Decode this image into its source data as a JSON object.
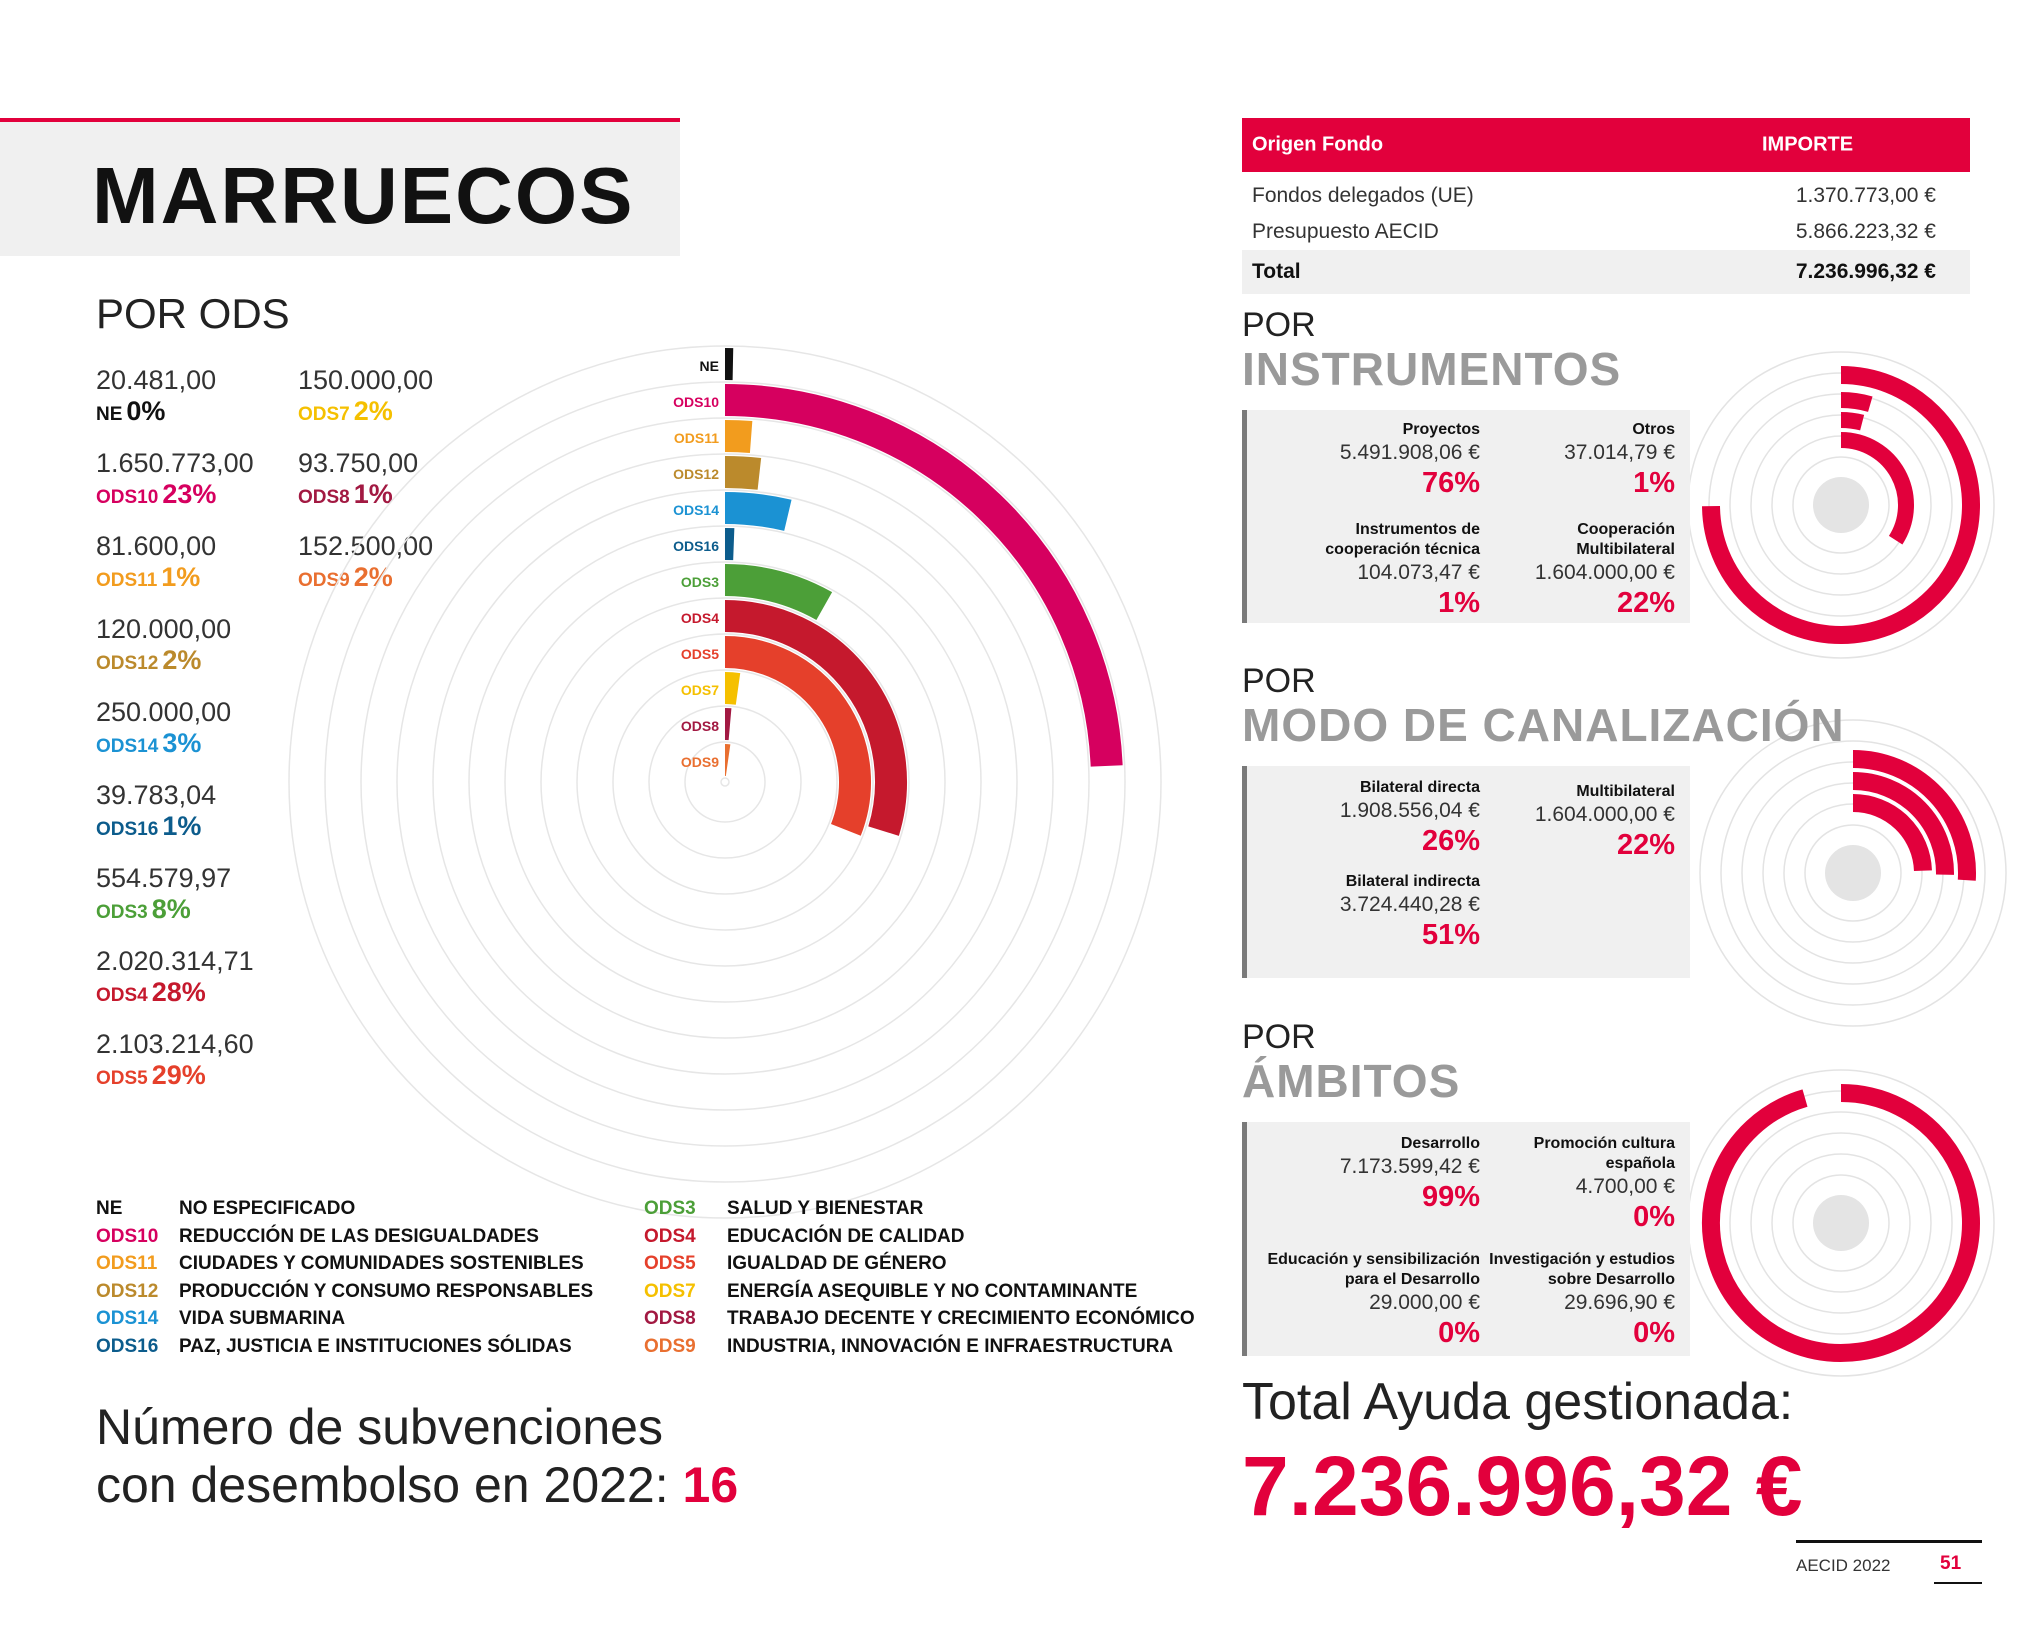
{
  "title": "MARRUECOS",
  "ods_section": {
    "heading": "POR ODS",
    "items": [
      {
        "code": "NE",
        "amount": "20.481,00",
        "pct": "0%",
        "color": "#111111"
      },
      {
        "code": "ODS10",
        "amount": "1.650.773,00",
        "pct": "23%",
        "color": "#d6005f"
      },
      {
        "code": "ODS11",
        "amount": "81.600,00",
        "pct": "1%",
        "color": "#f29c1e"
      },
      {
        "code": "ODS12",
        "amount": "120.000,00",
        "pct": "2%",
        "color": "#bb8a2c"
      },
      {
        "code": "ODS14",
        "amount": "250.000,00",
        "pct": "3%",
        "color": "#1b92d3"
      },
      {
        "code": "ODS16",
        "amount": "39.783,04",
        "pct": "1%",
        "color": "#0c5c8c"
      },
      {
        "code": "ODS3",
        "amount": "554.579,97",
        "pct": "8%",
        "color": "#4c9f38"
      },
      {
        "code": "ODS4",
        "amount": "2.020.314,71",
        "pct": "28%",
        "color": "#c5192d"
      },
      {
        "code": "ODS5",
        "amount": "2.103.214,60",
        "pct": "29%",
        "color": "#e5402b"
      },
      {
        "code": "ODS7",
        "amount": "150.000,00",
        "pct": "2%",
        "color": "#f5c000"
      },
      {
        "code": "ODS8",
        "amount": "93.750,00",
        "pct": "1%",
        "color": "#a21942"
      },
      {
        "code": "ODS9",
        "amount": "152.500,00",
        "pct": "2%",
        "color": "#e96f30"
      }
    ]
  },
  "chart_data": [
    {
      "type": "radial-bar",
      "categories": [
        "NE",
        "ODS10",
        "ODS11",
        "ODS12",
        "ODS14",
        "ODS16",
        "ODS3",
        "ODS4",
        "ODS5",
        "ODS7",
        "ODS8",
        "ODS9"
      ],
      "values": [
        20481.0,
        1650773.0,
        81600.0,
        120000.0,
        250000.0,
        39783.04,
        554579.97,
        2020314.71,
        2103214.6,
        150000.0,
        93750.0,
        152500.0
      ],
      "percentages": [
        0,
        23,
        1,
        2,
        3,
        1,
        8,
        28,
        29,
        2,
        1,
        2
      ],
      "colors": [
        "#111111",
        "#d6005f",
        "#f29c1e",
        "#bb8a2c",
        "#1b92d3",
        "#0c5c8c",
        "#4c9f38",
        "#c5192d",
        "#e5402b",
        "#f5c000",
        "#a21942",
        "#e96f30"
      ]
    },
    {
      "type": "radial-bar",
      "categories": [
        "Proyectos",
        "Otros",
        "Instrumentos de cooperación técnica",
        "Cooperación Multibilateral"
      ],
      "percentages": [
        76,
        1,
        1,
        22
      ]
    },
    {
      "type": "radial-bar",
      "categories": [
        "Bilateral directa",
        "Multibilateral",
        "Bilateral indirecta"
      ],
      "percentages": [
        26,
        22,
        51
      ]
    },
    {
      "type": "radial-bar",
      "categories": [
        "Desarrollo",
        "Promoción cultura española",
        "Educación y sensibilización para el Desarrollo",
        "Investigación y estudios sobre Desarrollo"
      ],
      "percentages": [
        99,
        0,
        0,
        0
      ]
    }
  ],
  "legend": [
    {
      "code": "NE",
      "name": "NO ESPECIFICADO",
      "color": "#111111"
    },
    {
      "code": "ODS10",
      "name": "REDUCCIÓN DE LAS DESIGUALDADES",
      "color": "#d6005f"
    },
    {
      "code": "ODS11",
      "name": "CIUDADES Y COMUNIDADES SOSTENIBLES",
      "color": "#f29c1e"
    },
    {
      "code": "ODS12",
      "name": "PRODUCCIÓN Y CONSUMO RESPONSABLES",
      "color": "#bb8a2c"
    },
    {
      "code": "ODS14",
      "name": "VIDA SUBMARINA",
      "color": "#1b92d3"
    },
    {
      "code": "ODS16",
      "name": "PAZ, JUSTICIA E INSTITUCIONES SÓLIDAS",
      "color": "#0c5c8c"
    },
    {
      "code": "ODS3",
      "name": "SALUD Y BIENESTAR",
      "color": "#4c9f38"
    },
    {
      "code": "ODS4",
      "name": "EDUCACIÓN DE CALIDAD",
      "color": "#c5192d"
    },
    {
      "code": "ODS5",
      "name": "IGUALDAD DE GÉNERO",
      "color": "#e5402b"
    },
    {
      "code": "ODS7",
      "name": "ENERGÍA ASEQUIBLE Y NO CONTAMINANTE",
      "color": "#f5c000"
    },
    {
      "code": "ODS8",
      "name": "TRABAJO DECENTE Y CRECIMIENTO ECONÓMICO",
      "color": "#a21942"
    },
    {
      "code": "ODS9",
      "name": "INDUSTRIA, INNOVACIÓN E INFRAESTRUCTURA",
      "color": "#e96f30"
    }
  ],
  "subvenciones": {
    "line1": "Número de subvenciones",
    "line2": "con desembolso en 2022:",
    "count": "16"
  },
  "fund_table": {
    "header": {
      "col1": "Origen Fondo",
      "col2": "IMPORTE"
    },
    "rows": [
      {
        "label": "Fondos delegados (UE)",
        "value": "1.370.773,00 €"
      },
      {
        "label": "Presupuesto AECID",
        "value": "5.866.223,32 €"
      }
    ],
    "total": {
      "label": "Total",
      "value": "7.236.996,32 €"
    }
  },
  "instrumentos": {
    "por": "POR",
    "title": "INSTRUMENTOS",
    "cells": [
      {
        "label1": "Proyectos",
        "label2": "",
        "amount": "5.491.908,06 €",
        "pct": "76%"
      },
      {
        "label1": "Otros",
        "label2": "",
        "amount": "37.014,79 €",
        "pct": "1%"
      },
      {
        "label1": "Instrumentos de",
        "label2": "cooperación técnica",
        "amount": "104.073,47 €",
        "pct": "1%"
      },
      {
        "label1": "Cooperación",
        "label2": "Multibilateral",
        "amount": "1.604.000,00 €",
        "pct": "22%"
      }
    ]
  },
  "canalizacion": {
    "por": "POR",
    "title": "MODO DE CANALIZACIÓN",
    "cells": [
      {
        "label1": "Bilateral directa",
        "amount": "1.908.556,04 €",
        "pct": "26%"
      },
      {
        "label1": "Multibilateral",
        "amount": "1.604.000,00 €",
        "pct": "22%"
      },
      {
        "label1": "Bilateral indirecta",
        "amount": "3.724.440,28 €",
        "pct": "51%"
      }
    ]
  },
  "ambitos": {
    "por": "POR",
    "title": "ÁMBITOS",
    "cells": [
      {
        "label1": "Desarrollo",
        "label2": "",
        "amount": "7.173.599,42 €",
        "pct": "99%"
      },
      {
        "label1": "Promoción cultura",
        "label2": "española",
        "amount": "4.700,00 €",
        "pct": "0%"
      },
      {
        "label1": "Educación y sensibilización",
        "label2": "para el Desarrollo",
        "amount": "29.000,00 €",
        "pct": "0%"
      },
      {
        "label1": "Investigación y estudios",
        "label2": "sobre Desarrollo",
        "amount": "29.696,90 €",
        "pct": "0%"
      }
    ]
  },
  "total_ayuda": {
    "label": "Total Ayuda gestionada:",
    "value": "7.236.996,32 €"
  },
  "footer": {
    "brand": "AECID 2022",
    "page": "51"
  },
  "colors": {
    "accent": "#e2003c",
    "gray_title": "#9a9a9a"
  }
}
